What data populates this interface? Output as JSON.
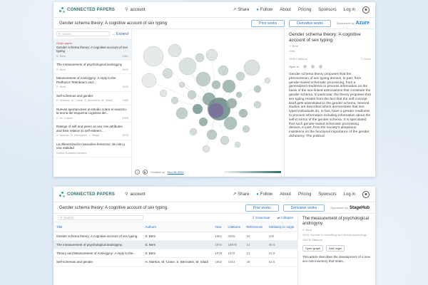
{
  "nav": {
    "brand": "CONNECTED PAPERS",
    "search_value": "account",
    "links": [
      "Share",
      "Follow",
      "About",
      "Pricing",
      "Sponsors",
      "Log in"
    ],
    "user_initial": "▲"
  },
  "top": {
    "subtitle": "Gender schema theory: A cognitive account of sex typing",
    "prior_works": "Prior works",
    "derivative_works": "Derivative works",
    "sponsored_by": "Sponsored by",
    "sponsor_name": "Azure",
    "list_search_placeholder": "Search",
    "expand_label": "Expand",
    "list": [
      {
        "tag": "Origin paper",
        "title": "Gender schema theory: A cognitive account of sex typing",
        "author": "S. Bem",
        "year": "1981",
        "selected": true
      },
      {
        "tag": "",
        "title": "The measurement of psychological androgyny",
        "author": "S. Bem",
        "year": "1974",
        "selected": false
      },
      {
        "tag": "",
        "title": "Measurement of Androgyny: A reply to the Pedhazur-Tetenbaum and...",
        "author": "S. Bem",
        "year": "1979",
        "selected": false
      },
      {
        "tag": "",
        "title": "Self-schemas and gender",
        "author": "H. Markus, M. Crane, S. Bernstein, M. Siladi",
        "year": "1982",
        "selected": false
      },
      {
        "tag": "",
        "title": "Nuevas aportaciones al estudio sobre el sexismo: la teoría del esquema cognitivo del...",
        "author": "C. M. Cabral",
        "year": "2006",
        "selected": false
      },
      {
        "tag": "",
        "title": "Ratings of self and peers on sex role attributes and their relation to self-esteem...",
        "author": "J. Spence, R. Helmreich, J. Stapp",
        "year": "1975",
        "selected": false
      },
      {
        "tag": "",
        "title": "La diferenciación masculino-femenino: de mito y una realidad",
        "author": "Online Sources Ministry",
        "year": "",
        "selected": false
      }
    ],
    "graph_footer_text": "Created on",
    "graph_footer_date": "Nov 06 2022",
    "detail": {
      "title": "Gender schema theory: A cognitive account of sex typing.",
      "author": "S. Bem",
      "year": "1981",
      "citations": "3265 Citations",
      "save": "Save",
      "open_in": "Open in",
      "abstract": "Gender schema theory proposes that the phenomenon of sex typing derives, in part, from gender-based schematic processing, from a generalized readiness to process information on the basis of the sex-linked associations that constitute the gender schema. In particular, the theory proposes that sex typing results from the fact that the self-concept itself gets assimilated to the gender schema. Several studies are described which demonstrate that sex-typed individuals do, in fact, have a greater readiness to process information-including information about the self-in terms of the gender schema. It is speculated that such gender-based schematic processing derives, in part, from the society's ubiquitous insistence on the functional importance of the gender dichotomy. The political"
    }
  },
  "bottom": {
    "subtitle": "Gender schema theory: A cognitive account of sex typing.",
    "prior_works": "Prior works",
    "derivative_works": "Derivative works",
    "sponsored_by": "Sponsored by",
    "sponsor_name": "StageHub",
    "table_search_placeholder": "Search",
    "download_label": "Download",
    "collapse_label": "Collapse",
    "columns": [
      "Title",
      "Authors",
      "Year",
      "Citations",
      "References",
      "Similarity to origin"
    ],
    "rows": [
      {
        "title": "Gender schema theory: A cognitive account of sex typing.",
        "authors": "S. Bem",
        "year": "1981",
        "citations": "3265",
        "references": "34",
        "similarity": "100",
        "selected": false
      },
      {
        "title": "The measurement of psychological androgyny.",
        "authors": "S. Bem",
        "year": "1974",
        "citations": "15978",
        "references": "14",
        "similarity": "45.5",
        "selected": true
      },
      {
        "title": "Theory and Measurement of Androgyny: A reply to the...",
        "authors": "S. Bem",
        "year": "1979",
        "citations": "1970",
        "references": "13",
        "similarity": "42.8",
        "selected": false
      },
      {
        "title": "Self-schemas and gender",
        "authors": "H. Markus, M. Crane, S. Bernstein, M. Siladi",
        "year": "1982",
        "citations": "1013",
        "references": "29",
        "similarity": "42.6",
        "selected": false
      }
    ],
    "detail": {
      "title": "The measurement of psychological androgyny.",
      "author": "S. Bem",
      "venue": "1974, Journal of consulting and clinical psychology",
      "citations": "15978 Citations",
      "open_graph": "Open graph",
      "add_origin": "Add origin",
      "abstract": "This article describes the development of a new sex-role inventory that treats..."
    }
  },
  "colors": {
    "accent": "#2a6fc0",
    "brand": "#2f6f6a",
    "node": "#c9d4d2",
    "node_dark": "#6f8e8c",
    "node_selected": "#7c6f9c"
  }
}
